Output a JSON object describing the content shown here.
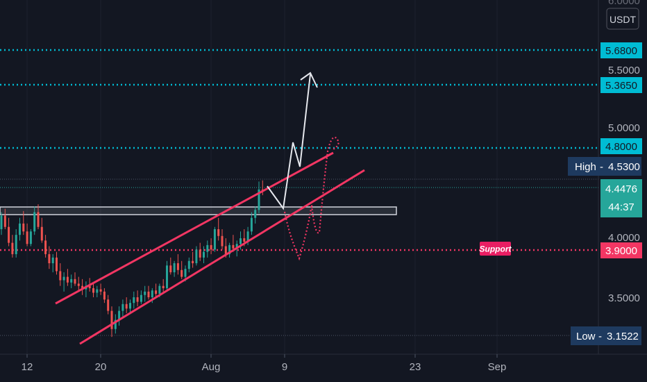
{
  "chart_data": {
    "type": "candlestick",
    "currency": "USDT",
    "top_partial_label": "6.0000",
    "y_ticks": [
      "5.5000",
      "5.0000",
      "4.0000",
      "3.5000"
    ],
    "x_ticks": [
      "12",
      "20",
      "Aug",
      "9",
      "23",
      "Sep"
    ],
    "levels": [
      {
        "value": 5.68,
        "label": "5.6800",
        "color": "#00bcd4",
        "style": "dotted"
      },
      {
        "value": 5.365,
        "label": "5.3650",
        "color": "#00bcd4",
        "style": "dotted"
      },
      {
        "value": 4.8,
        "label": "4.8000",
        "color": "#00bcd4",
        "style": "dotted"
      },
      {
        "value": 3.9,
        "label": "3.9000",
        "color": "#f23663",
        "style": "dotted"
      }
    ],
    "high": {
      "title": "High",
      "value": "4.5300"
    },
    "low": {
      "title": "Low",
      "value": "3.1522"
    },
    "last_price": {
      "value": "4.4476",
      "countdown": "44:37",
      "color": "#26a69a"
    },
    "support_label": "Support",
    "colors": {
      "up": "#26a69a",
      "down": "#ef5350",
      "channel": "#f23663",
      "cyan": "#00bcd4",
      "navy": "#1e3a5f",
      "zone": "#d1d4dc"
    },
    "candles": [
      [
        4.1,
        4.25,
        4.05,
        4.22
      ],
      [
        4.22,
        4.28,
        4.1,
        4.12
      ],
      [
        4.12,
        4.2,
        3.95,
        3.98
      ],
      [
        3.98,
        4.05,
        3.85,
        3.88
      ],
      [
        3.88,
        4.1,
        3.85,
        4.05
      ],
      [
        4.05,
        4.2,
        4.0,
        4.15
      ],
      [
        4.15,
        4.26,
        4.05,
        4.08
      ],
      [
        4.08,
        4.15,
        3.95,
        3.97
      ],
      [
        3.97,
        4.1,
        3.95,
        4.08
      ],
      [
        4.08,
        4.3,
        4.05,
        4.25
      ],
      [
        4.25,
        4.32,
        4.1,
        4.12
      ],
      [
        4.12,
        4.2,
        3.98,
        4.0
      ],
      [
        4.0,
        4.05,
        3.85,
        3.88
      ],
      [
        3.88,
        3.95,
        3.75,
        3.8
      ],
      [
        3.8,
        3.88,
        3.72,
        3.85
      ],
      [
        3.85,
        3.9,
        3.7,
        3.73
      ],
      [
        3.73,
        3.8,
        3.6,
        3.65
      ],
      [
        3.65,
        3.72,
        3.55,
        3.68
      ],
      [
        3.68,
        3.75,
        3.6,
        3.63
      ],
      [
        3.63,
        3.7,
        3.58,
        3.66
      ],
      [
        3.66,
        3.72,
        3.6,
        3.62
      ],
      [
        3.62,
        3.68,
        3.55,
        3.6
      ],
      [
        3.6,
        3.66,
        3.52,
        3.57
      ],
      [
        3.57,
        3.64,
        3.5,
        3.6
      ],
      [
        3.6,
        3.67,
        3.55,
        3.58
      ],
      [
        3.58,
        3.63,
        3.5,
        3.54
      ],
      [
        3.54,
        3.6,
        3.5,
        3.57
      ],
      [
        3.57,
        3.62,
        3.52,
        3.55
      ],
      [
        3.55,
        3.58,
        3.45,
        3.48
      ],
      [
        3.48,
        3.52,
        3.35,
        3.38
      ],
      [
        3.38,
        3.42,
        3.15,
        3.22
      ],
      [
        3.22,
        3.35,
        3.18,
        3.3
      ],
      [
        3.3,
        3.42,
        3.25,
        3.38
      ],
      [
        3.38,
        3.48,
        3.32,
        3.44
      ],
      [
        3.44,
        3.5,
        3.36,
        3.4
      ],
      [
        3.4,
        3.48,
        3.35,
        3.45
      ],
      [
        3.45,
        3.55,
        3.4,
        3.5
      ],
      [
        3.5,
        3.56,
        3.42,
        3.46
      ],
      [
        3.46,
        3.56,
        3.44,
        3.52
      ],
      [
        3.52,
        3.6,
        3.46,
        3.55
      ],
      [
        3.55,
        3.6,
        3.48,
        3.5
      ],
      [
        3.5,
        3.58,
        3.45,
        3.56
      ],
      [
        3.56,
        3.62,
        3.5,
        3.53
      ],
      [
        3.53,
        3.62,
        3.5,
        3.6
      ],
      [
        3.6,
        3.66,
        3.55,
        3.58
      ],
      [
        3.58,
        3.82,
        3.56,
        3.78
      ],
      [
        3.78,
        3.85,
        3.7,
        3.72
      ],
      [
        3.72,
        3.82,
        3.68,
        3.8
      ],
      [
        3.8,
        3.88,
        3.7,
        3.74
      ],
      [
        3.74,
        3.82,
        3.66,
        3.68
      ],
      [
        3.68,
        3.78,
        3.64,
        3.75
      ],
      [
        3.75,
        3.85,
        3.72,
        3.82
      ],
      [
        3.82,
        3.9,
        3.76,
        3.8
      ],
      [
        3.8,
        3.95,
        3.78,
        3.92
      ],
      [
        3.92,
        3.98,
        3.82,
        3.85
      ],
      [
        3.85,
        3.95,
        3.8,
        3.9
      ],
      [
        3.9,
        4.0,
        3.85,
        3.96
      ],
      [
        3.96,
        4.02,
        3.88,
        3.92
      ],
      [
        3.92,
        4.12,
        3.9,
        4.1
      ],
      [
        4.1,
        4.2,
        4.0,
        4.04
      ],
      [
        4.04,
        4.1,
        3.92,
        3.95
      ],
      [
        3.95,
        4.02,
        3.85,
        3.88
      ],
      [
        3.88,
        3.98,
        3.85,
        3.96
      ],
      [
        3.96,
        4.05,
        3.9,
        3.93
      ],
      [
        3.93,
        4.0,
        3.86,
        3.97
      ],
      [
        3.97,
        4.08,
        3.92,
        4.02
      ],
      [
        4.02,
        4.1,
        3.95,
        3.99
      ],
      [
        3.99,
        4.12,
        3.96,
        4.08
      ],
      [
        4.08,
        4.25,
        4.05,
        4.2
      ],
      [
        4.2,
        4.3,
        4.15,
        4.27
      ],
      [
        4.27,
        4.52,
        4.24,
        4.45
      ],
      [
        4.45,
        4.53,
        4.4,
        4.4476
      ]
    ]
  }
}
